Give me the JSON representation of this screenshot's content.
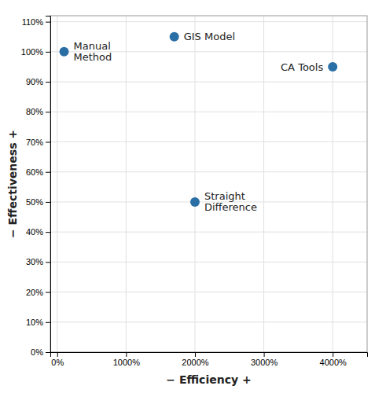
{
  "chart_data": {
    "type": "scatter",
    "xlabel": "−  Efficiency  +",
    "ylabel": "−  Effectiveness  +",
    "x": [
      100,
      1700,
      4000,
      2000
    ],
    "values": [
      100,
      105,
      95,
      50
    ],
    "annotations": [
      "Manual\nMethod",
      "GIS Model",
      "CA Tools",
      "Straight\nDifference"
    ],
    "color": "#2a6ea6",
    "xlim": [
      -100,
      4500
    ],
    "ylim": [
      0,
      112
    ],
    "xticks": [
      {
        "value": 0,
        "label": "0%"
      },
      {
        "value": 1000,
        "label": "1000%"
      },
      {
        "value": 2000,
        "label": "2000%"
      },
      {
        "value": 3000,
        "label": "3000%"
      },
      {
        "value": 4000,
        "label": "4000%"
      }
    ],
    "yticks": [
      {
        "value": 0,
        "label": "0%"
      },
      {
        "value": 10,
        "label": "10%"
      },
      {
        "value": 20,
        "label": "20%"
      },
      {
        "value": 30,
        "label": "30%"
      },
      {
        "value": 40,
        "label": "40%"
      },
      {
        "value": 50,
        "label": "50%"
      },
      {
        "value": 60,
        "label": "60%"
      },
      {
        "value": 70,
        "label": "70%"
      },
      {
        "value": 80,
        "label": "80%"
      },
      {
        "value": 90,
        "label": "90%"
      },
      {
        "value": 100,
        "label": "100%"
      },
      {
        "value": 110,
        "label": "110%"
      }
    ],
    "grid": true
  }
}
